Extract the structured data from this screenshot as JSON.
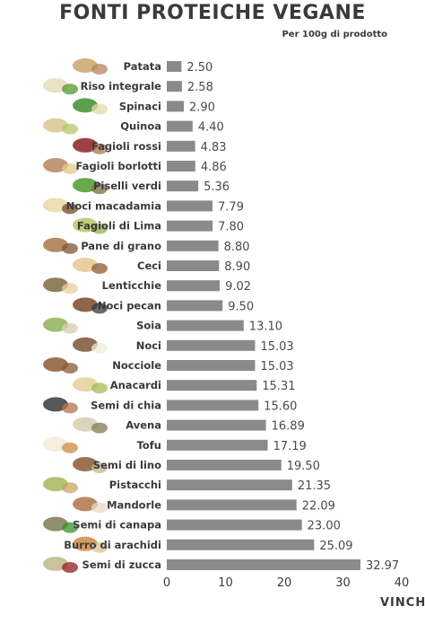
{
  "chart_data": {
    "type": "bar",
    "orientation": "horizontal",
    "title": "FONTI PROTEICHE VEGANE",
    "subtitle": "Per 100g di prodotto",
    "xlabel": "",
    "ylabel": "",
    "xlim": [
      0,
      40
    ],
    "ticks": [
      0,
      10,
      20,
      30,
      40
    ],
    "grid": false,
    "categories": [
      "Patata",
      "Riso integrale",
      "Spinaci",
      "Quinoa",
      "Fagioli rossi",
      "Fagioli borlotti",
      "Piselli verdi",
      "Noci macadamia",
      "Fagioli di Lima",
      "Pane di grano",
      "Ceci",
      "Lenticchie",
      "Noci pecan",
      "Soia",
      "Noci",
      "Nocciole",
      "Anacardi",
      "Semi di chia",
      "Avena",
      "Tofu",
      "Semi di lino",
      "Pistacchi",
      "Mandorle",
      "Semi di canapa",
      "Burro di arachidi",
      "Semi di zucca"
    ],
    "values": [
      2.5,
      2.58,
      2.9,
      4.4,
      4.83,
      4.86,
      5.36,
      7.79,
      7.8,
      8.8,
      8.9,
      9.02,
      9.5,
      13.1,
      15.03,
      15.03,
      15.31,
      15.6,
      16.89,
      17.19,
      19.5,
      21.35,
      22.09,
      23.0,
      25.09,
      32.97
    ],
    "value_labels": [
      "2.50",
      "2.58",
      "2.90",
      "4.40",
      "4.83",
      "4.86",
      "5.36",
      "7.79",
      "7.80",
      "8.80",
      "8.90",
      "9.02",
      "9.50",
      "13.10",
      "15.03",
      "15.03",
      "15.31",
      "15.60",
      "16.89",
      "17.19",
      "19.50",
      "21.35",
      "22.09",
      "23.00",
      "25.09",
      "32.97"
    ],
    "bar_color": "#8a8a8a"
  },
  "brand": "VINCHA",
  "icon_names": [
    "potato-icon",
    "rice-icon",
    "spinach-icon",
    "quinoa-icon",
    "red-beans-icon",
    "borlotti-beans-icon",
    "green-peas-icon",
    "macadamia-icon",
    "lima-beans-icon",
    "bread-icon",
    "chickpeas-icon",
    "lentils-icon",
    "pecan-icon",
    "soy-icon",
    "walnut-icon",
    "hazelnut-icon",
    "cashew-icon",
    "chia-icon",
    "oats-icon",
    "tofu-icon",
    "flax-icon",
    "pistachio-icon",
    "almond-icon",
    "hemp-icon",
    "peanut-butter-icon",
    "pumpkin-seeds-icon"
  ]
}
